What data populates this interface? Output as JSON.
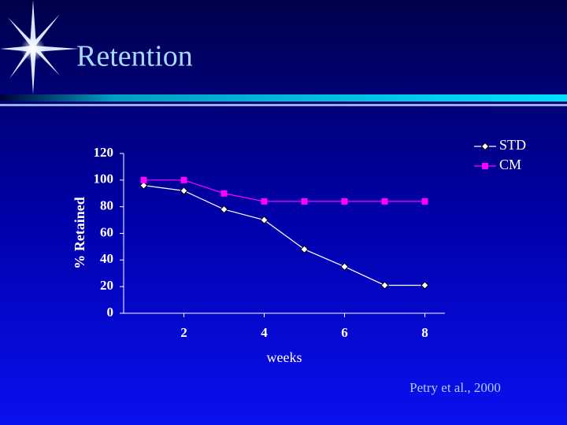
{
  "chart_data": {
    "type": "line",
    "title": "Retention",
    "y_label": "% Retained",
    "x_label": "weeks",
    "source": "Petry et al., 2000",
    "x": [
      1,
      2,
      3,
      4,
      5,
      6,
      7,
      8
    ],
    "series": [
      {
        "name": "STD",
        "color": "#ffffff",
        "marker": "diamond",
        "values": [
          96,
          92,
          78,
          70,
          48,
          35,
          21,
          21
        ]
      },
      {
        "name": "CM",
        "color": "#ff00ff",
        "marker": "square",
        "values": [
          100,
          100,
          90,
          84,
          84,
          84,
          84,
          84
        ]
      }
    ],
    "xlim": [
      0.5,
      8.5
    ],
    "xticks": [
      2,
      4,
      6,
      8
    ],
    "ylim": [
      0,
      120
    ],
    "yticks": [
      0,
      20,
      40,
      60,
      80,
      100,
      120
    ],
    "legend": "top-right"
  }
}
